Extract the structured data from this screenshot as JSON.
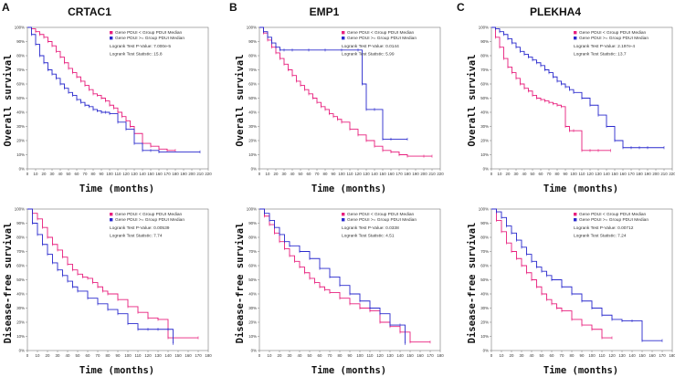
{
  "panel_labels": [
    "A",
    "B",
    "C"
  ],
  "gene_titles": [
    "CRTAC1",
    "EMP1",
    "PLEKHA4"
  ],
  "colors": {
    "low": "#e8207e",
    "high": "#2a2acd"
  },
  "y_label_overall": "Overall survival",
  "y_label_dfs": "Disease-free survival",
  "x_label": "Time (months)",
  "chart_data": [
    {
      "type": "line",
      "id": "A-os",
      "gene": "CRTAC1",
      "title": "CRTAC1",
      "xlabel": "Time (months)",
      "ylabel": "Overall survival",
      "xlim": [
        0,
        220
      ],
      "xticks": [
        "0",
        "10",
        "20",
        "30",
        "40",
        "50",
        "60",
        "70",
        "80",
        "90",
        "100",
        "110",
        "120",
        "130",
        "140",
        "150",
        "160",
        "170",
        "180",
        "190",
        "200",
        "210",
        "220"
      ],
      "ylim": [
        0,
        100
      ],
      "yticks": [
        "0%",
        "10%",
        "20%",
        "30%",
        "40%",
        "50%",
        "60%",
        "70%",
        "80%",
        "90%",
        "100%"
      ],
      "legend": [
        "Gene PDUI < Group PDUI Median",
        "Gene PDUI >= Group PDUI Median"
      ],
      "stats": [
        "Logrank Test P-Value: 7.000e-5",
        "Logrank Test Statistic: 15.8"
      ],
      "series": [
        {
          "name": "Gene PDUI < Group PDUI Median",
          "color_key": "low",
          "x": [
            0,
            5,
            10,
            15,
            20,
            25,
            30,
            35,
            40,
            45,
            50,
            55,
            60,
            65,
            70,
            75,
            80,
            85,
            90,
            95,
            100,
            105,
            110,
            115,
            120,
            125,
            130,
            140,
            150,
            160,
            170,
            180
          ],
          "y": [
            100,
            99,
            97,
            95,
            93,
            90,
            87,
            83,
            79,
            75,
            71,
            68,
            65,
            62,
            59,
            56,
            53,
            52,
            50,
            48,
            45,
            43,
            40,
            37,
            34,
            30,
            25,
            18,
            16,
            14,
            13,
            13
          ]
        },
        {
          "name": "Gene PDUI >= Group PDUI Median",
          "color_key": "high",
          "x": [
            0,
            5,
            10,
            15,
            20,
            25,
            30,
            35,
            40,
            45,
            50,
            55,
            60,
            65,
            70,
            75,
            80,
            85,
            90,
            95,
            100,
            110,
            120,
            130,
            140,
            150,
            160,
            210
          ],
          "y": [
            100,
            95,
            88,
            80,
            75,
            70,
            67,
            64,
            60,
            57,
            54,
            52,
            49,
            47,
            45,
            44,
            42,
            41,
            40,
            40,
            39,
            33,
            28,
            18,
            13,
            13,
            12,
            12
          ]
        }
      ]
    },
    {
      "type": "line",
      "id": "B-os",
      "gene": "EMP1",
      "title": "EMP1",
      "xlabel": "Time (months)",
      "ylabel": "Overall survival",
      "xlim": [
        0,
        220
      ],
      "xticks": [
        "0",
        "10",
        "20",
        "30",
        "40",
        "50",
        "60",
        "70",
        "80",
        "90",
        "100",
        "110",
        "120",
        "130",
        "140",
        "150",
        "160",
        "170",
        "180",
        "190",
        "200",
        "210",
        "220"
      ],
      "ylim": [
        0,
        100
      ],
      "yticks": [
        "0%",
        "10%",
        "20%",
        "30%",
        "40%",
        "50%",
        "60%",
        "70%",
        "80%",
        "90%",
        "100%"
      ],
      "legend": [
        "Gene PDUI < Group PDUI Median",
        "Gene PDUI >= Group PDUI Median"
      ],
      "stats": [
        "Logrank Test P-Value: 0.0144",
        "Logrank Test Statistic: 5.99"
      ],
      "series": [
        {
          "name": "Gene PDUI < Group PDUI Median",
          "color_key": "low",
          "x": [
            0,
            5,
            10,
            15,
            20,
            25,
            30,
            35,
            40,
            45,
            50,
            55,
            60,
            65,
            70,
            75,
            80,
            85,
            90,
            95,
            100,
            110,
            120,
            130,
            140,
            150,
            160,
            170,
            180,
            200,
            210
          ],
          "y": [
            100,
            96,
            91,
            86,
            82,
            78,
            74,
            70,
            66,
            62,
            59,
            56,
            53,
            50,
            47,
            44,
            42,
            39,
            37,
            35,
            33,
            28,
            24,
            20,
            16,
            13,
            12,
            10,
            9,
            9,
            9
          ]
        },
        {
          "name": "Gene PDUI >= Group PDUI Median",
          "color_key": "high",
          "x": [
            0,
            5,
            10,
            15,
            20,
            25,
            30,
            40,
            60,
            80,
            100,
            120,
            125,
            130,
            140,
            150,
            160,
            180
          ],
          "y": [
            100,
            97,
            93,
            89,
            86,
            84,
            84,
            84,
            84,
            84,
            84,
            84,
            60,
            42,
            42,
            21,
            21,
            21
          ]
        }
      ]
    },
    {
      "type": "line",
      "id": "C-os",
      "gene": "PLEKHA4",
      "title": "PLEKHA4",
      "xlabel": "Time (months)",
      "ylabel": "Overall survival",
      "xlim": [
        0,
        220
      ],
      "xticks": [
        "0",
        "10",
        "20",
        "30",
        "40",
        "50",
        "60",
        "70",
        "80",
        "90",
        "100",
        "110",
        "120",
        "130",
        "140",
        "150",
        "160",
        "170",
        "180",
        "190",
        "200",
        "210",
        "220"
      ],
      "ylim": [
        0,
        100
      ],
      "yticks": [
        "0%",
        "10%",
        "20%",
        "30%",
        "40%",
        "50%",
        "60%",
        "70%",
        "80%",
        "90%",
        "100%"
      ],
      "legend": [
        "Gene PDUI < Group PDUI Median",
        "Gene PDUI >= Group PDUI Median"
      ],
      "stats": [
        "Logrank Test P-Value: 2.197e-4",
        "Logrank Test Statistic: 13.7"
      ],
      "series": [
        {
          "name": "Gene PDUI < Group PDUI Median",
          "color_key": "low",
          "x": [
            0,
            5,
            10,
            15,
            20,
            25,
            30,
            35,
            40,
            45,
            50,
            55,
            60,
            65,
            70,
            75,
            80,
            85,
            90,
            95,
            100,
            110,
            120,
            130,
            145
          ],
          "y": [
            100,
            93,
            86,
            78,
            72,
            68,
            64,
            60,
            57,
            55,
            52,
            50,
            49,
            48,
            47,
            46,
            45,
            44,
            30,
            27,
            27,
            13,
            13,
            13,
            13
          ]
        },
        {
          "name": "Gene PDUI >= Group PDUI Median",
          "color_key": "high",
          "x": [
            0,
            5,
            10,
            15,
            20,
            25,
            30,
            35,
            40,
            45,
            50,
            55,
            60,
            65,
            70,
            75,
            80,
            85,
            90,
            95,
            100,
            110,
            120,
            130,
            140,
            150,
            160,
            170,
            180,
            190,
            210
          ],
          "y": [
            100,
            99,
            97,
            95,
            92,
            89,
            86,
            83,
            81,
            79,
            77,
            75,
            73,
            70,
            68,
            65,
            62,
            60,
            58,
            56,
            54,
            50,
            45,
            38,
            30,
            20,
            15,
            15,
            15,
            15,
            15
          ]
        }
      ]
    },
    {
      "type": "line",
      "id": "A-dfs",
      "gene": "CRTAC1",
      "title": "CRTAC1",
      "xlabel": "Time (months)",
      "ylabel": "Disease-free survival",
      "xlim": [
        0,
        180
      ],
      "xticks": [
        "0",
        "10",
        "20",
        "30",
        "40",
        "50",
        "60",
        "70",
        "80",
        "90",
        "100",
        "110",
        "120",
        "130",
        "140",
        "150",
        "160",
        "170",
        "180"
      ],
      "ylim": [
        0,
        100
      ],
      "yticks": [
        "0%",
        "10%",
        "20%",
        "30%",
        "40%",
        "50%",
        "60%",
        "70%",
        "80%",
        "90%",
        "100%"
      ],
      "legend": [
        "Gene PDUI < Group PDUI Median",
        "Gene PDUI >= Group PDUI Median"
      ],
      "stats": [
        "Logrank Test P-Value: 0.00539",
        "Logrank Test Statistic: 7.74"
      ],
      "series": [
        {
          "name": "Gene PDUI < Group PDUI Median",
          "color_key": "low",
          "x": [
            0,
            5,
            10,
            15,
            20,
            25,
            30,
            35,
            40,
            45,
            50,
            55,
            60,
            65,
            70,
            75,
            80,
            90,
            100,
            110,
            120,
            130,
            140,
            170
          ],
          "y": [
            100,
            97,
            93,
            87,
            80,
            75,
            71,
            66,
            61,
            57,
            54,
            52,
            51,
            48,
            45,
            42,
            40,
            36,
            31,
            27,
            23,
            22,
            9,
            9
          ]
        },
        {
          "name": "Gene PDUI >= Group PDUI Median",
          "color_key": "high",
          "x": [
            0,
            5,
            10,
            15,
            20,
            25,
            30,
            35,
            40,
            45,
            50,
            60,
            70,
            80,
            90,
            100,
            110,
            120,
            130,
            140,
            145
          ],
          "y": [
            100,
            90,
            82,
            75,
            68,
            62,
            57,
            53,
            49,
            45,
            42,
            37,
            33,
            29,
            26,
            19,
            15,
            15,
            15,
            15,
            5
          ]
        }
      ]
    },
    {
      "type": "line",
      "id": "B-dfs",
      "gene": "EMP1",
      "title": "EMP1",
      "xlabel": "Time (months)",
      "ylabel": "Disease-free survival",
      "xlim": [
        0,
        180
      ],
      "xticks": [
        "0",
        "10",
        "20",
        "30",
        "40",
        "50",
        "60",
        "70",
        "80",
        "90",
        "100",
        "110",
        "120",
        "130",
        "140",
        "150",
        "160",
        "170",
        "180"
      ],
      "ylim": [
        0,
        100
      ],
      "yticks": [
        "0%",
        "10%",
        "20%",
        "30%",
        "40%",
        "50%",
        "60%",
        "70%",
        "80%",
        "90%",
        "100%"
      ],
      "legend": [
        "Gene PDUI < Group PDUI Median",
        "Gene PDUI >= Group PDUI Median"
      ],
      "stats": [
        "Logrank Test P-Value: 0.0338",
        "Logrank Test Statistic: 4.51"
      ],
      "series": [
        {
          "name": "Gene PDUI < Group PDUI Median",
          "color_key": "low",
          "x": [
            0,
            5,
            10,
            15,
            20,
            25,
            30,
            35,
            40,
            45,
            50,
            55,
            60,
            65,
            70,
            80,
            90,
            100,
            110,
            120,
            130,
            140,
            150,
            170
          ],
          "y": [
            100,
            95,
            89,
            83,
            77,
            72,
            67,
            63,
            59,
            55,
            51,
            48,
            45,
            43,
            41,
            37,
            33,
            30,
            28,
            20,
            17,
            13,
            6,
            6
          ]
        },
        {
          "name": "Gene PDUI >= Group PDUI Median",
          "color_key": "high",
          "x": [
            0,
            5,
            10,
            15,
            20,
            25,
            30,
            40,
            50,
            60,
            70,
            80,
            90,
            100,
            110,
            120,
            130,
            140,
            145
          ],
          "y": [
            100,
            97,
            92,
            87,
            82,
            77,
            74,
            70,
            65,
            58,
            52,
            46,
            40,
            35,
            30,
            26,
            18,
            18,
            5
          ]
        }
      ]
    },
    {
      "type": "line",
      "id": "C-dfs",
      "gene": "PLEKHA4",
      "title": "PLEKHA4",
      "xlabel": "Time (months)",
      "ylabel": "Disease-free survival",
      "xlim": [
        0,
        180
      ],
      "xticks": [
        "0",
        "10",
        "20",
        "30",
        "40",
        "50",
        "60",
        "70",
        "80",
        "90",
        "100",
        "110",
        "120",
        "130",
        "140",
        "150",
        "160",
        "170",
        "180"
      ],
      "ylim": [
        0,
        100
      ],
      "yticks": [
        "0%",
        "10%",
        "20%",
        "30%",
        "40%",
        "50%",
        "60%",
        "70%",
        "80%",
        "90%",
        "100%"
      ],
      "legend": [
        "Gene PDUI < Group PDUI Median",
        "Gene PDUI >= Group PDUI Median"
      ],
      "stats": [
        "Logrank Test P-Value: 0.00712",
        "Logrank Test Statistic: 7.24"
      ],
      "series": [
        {
          "name": "Gene PDUI < Group PDUI Median",
          "color_key": "low",
          "x": [
            0,
            5,
            10,
            15,
            20,
            25,
            30,
            35,
            40,
            45,
            50,
            55,
            60,
            65,
            70,
            80,
            90,
            100,
            110,
            120
          ],
          "y": [
            100,
            92,
            84,
            76,
            70,
            65,
            60,
            55,
            50,
            45,
            40,
            36,
            33,
            30,
            28,
            22,
            18,
            15,
            9,
            9
          ]
        },
        {
          "name": "Gene PDUI >= Group PDUI Median",
          "color_key": "high",
          "x": [
            0,
            5,
            10,
            15,
            20,
            25,
            30,
            35,
            40,
            45,
            50,
            55,
            60,
            70,
            80,
            90,
            100,
            110,
            120,
            130,
            140,
            150,
            170
          ],
          "y": [
            100,
            98,
            94,
            88,
            83,
            78,
            73,
            68,
            63,
            59,
            56,
            53,
            50,
            45,
            40,
            35,
            30,
            25,
            22,
            21,
            21,
            7,
            7
          ]
        }
      ]
    }
  ]
}
